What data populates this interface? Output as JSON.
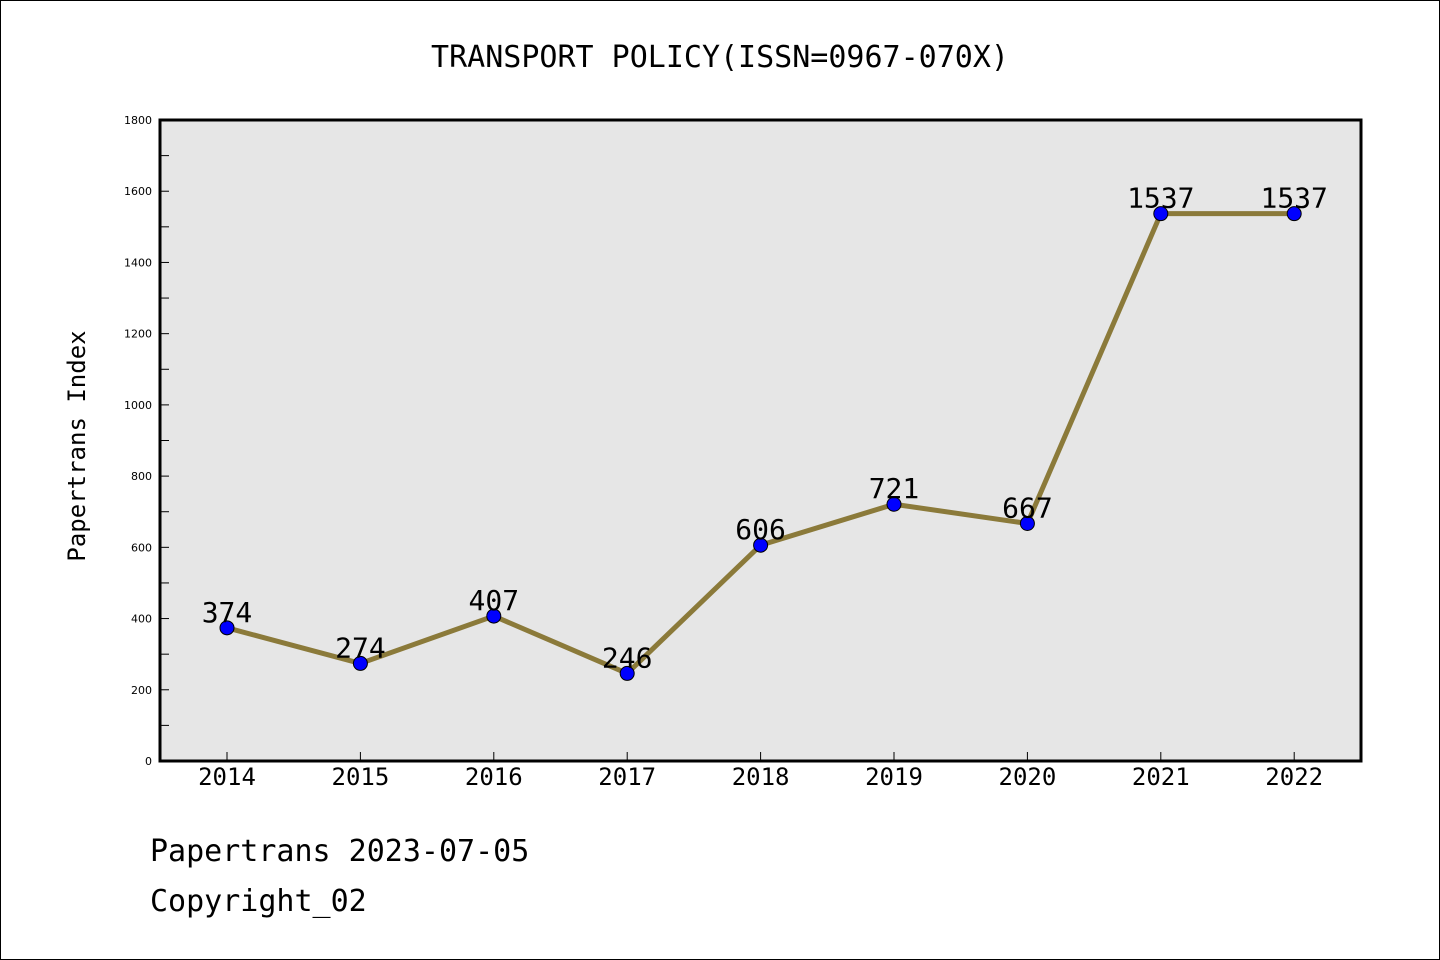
{
  "chart_data": {
    "type": "line",
    "title": "TRANSPORT POLICY(ISSN=0967-070X)",
    "xlabel": "",
    "ylabel": "Papertrans Index",
    "categories": [
      "2014",
      "2015",
      "2016",
      "2017",
      "2018",
      "2019",
      "2020",
      "2021",
      "2022"
    ],
    "series": [
      {
        "values": [
          374,
          274,
          407,
          246,
          606,
          721,
          667,
          1537,
          1537
        ]
      }
    ],
    "data_labels": [
      "374",
      "274",
      "407",
      "246",
      "606",
      "721",
      "667",
      "1537",
      "1537"
    ],
    "ylim": [
      0,
      1800
    ],
    "yticks": [
      "0",
      "200",
      "400",
      "600",
      "800",
      "1000",
      "1200",
      "1400",
      "1600",
      "1800"
    ],
    "grid": false,
    "legend": "none",
    "colors": {
      "line": "#8b7a3a",
      "marker": "#0000ff",
      "plot_background": "#e6e6e6"
    }
  },
  "footer": {
    "date_line": "Papertrans 2023-07-05",
    "copyright": "Copyright_02"
  }
}
